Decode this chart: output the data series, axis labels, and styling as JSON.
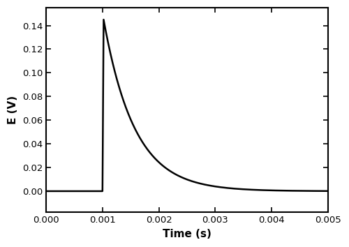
{
  "xlim": [
    0.0,
    0.005
  ],
  "ylim": [
    -0.018,
    0.155
  ],
  "xlabel": "Time (s)",
  "ylabel": "E (V)",
  "yticks": [
    0.0,
    0.02,
    0.04,
    0.06,
    0.08,
    0.1,
    0.12,
    0.14
  ],
  "xticks": [
    0.0,
    0.001,
    0.002,
    0.003,
    0.004,
    0.005
  ],
  "line_color": "#000000",
  "line_width": 1.8,
  "background_color": "#ffffff",
  "border_color": "#000000",
  "rise_time": 0.001,
  "peak_value": 0.145,
  "decay_tau": 0.00055,
  "baseline": 0.0,
  "xlabel_fontsize": 11,
  "ylabel_fontsize": 11,
  "tick_fontsize": 9.5,
  "fig_width": 5.0,
  "fig_height": 3.54,
  "dpi": 100
}
